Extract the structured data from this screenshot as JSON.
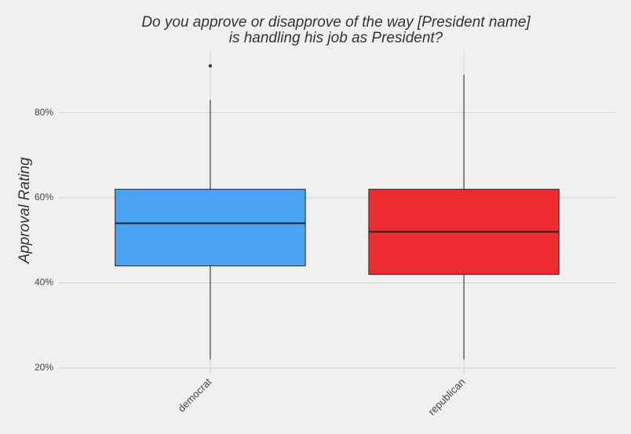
{
  "chart_data": {
    "type": "box",
    "title": [
      "Do you approve or disapprove of the way [President name]",
      "is handling his job as President?"
    ],
    "y_label": "Approval Rating",
    "categories": [
      "democrat",
      "republican"
    ],
    "boxes": [
      {
        "color": "#3d9cf6",
        "min": 22,
        "q1": 44,
        "median": 54,
        "q3": 62,
        "max": 83,
        "outliers": [
          91
        ]
      },
      {
        "color": "#ee1c22",
        "min": 22,
        "q1": 42,
        "median": 52,
        "q3": 62,
        "max": 89,
        "outliers": []
      }
    ],
    "ylim": [
      18.5,
      94.5
    ],
    "yticks": [
      {
        "value": 20,
        "label": "20%"
      },
      {
        "value": 40,
        "label": "40%"
      },
      {
        "value": 60,
        "label": "60%"
      },
      {
        "value": 80,
        "label": "80%"
      }
    ],
    "grid": true
  }
}
